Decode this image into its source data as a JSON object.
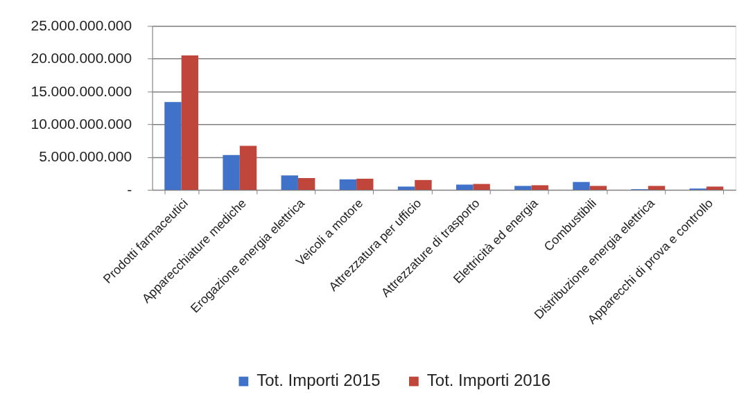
{
  "chart_data": {
    "type": "bar",
    "categories": [
      "Prodotti farmaceutici",
      "Apparecchiature mediche",
      "Erogazione energia elettrica",
      "Veicoli a motore",
      "Attrezzatura per ufficio",
      "Attrezzature di trasporto",
      "Elettricità ed energia",
      "Combustibili",
      "Distribuzione energia elettrica",
      "Apparecchi di prova e controllo"
    ],
    "series": [
      {
        "name": "Tot. Importi 2015",
        "color": "#3f72c8",
        "values": [
          13400000000,
          5300000000,
          2200000000,
          1600000000,
          500000000,
          800000000,
          600000000,
          1200000000,
          100000000,
          200000000
        ]
      },
      {
        "name": "Tot. Importi 2016",
        "color": "#c0463b",
        "values": [
          20500000000,
          6700000000,
          1800000000,
          1700000000,
          1500000000,
          900000000,
          700000000,
          600000000,
          600000000,
          500000000
        ]
      }
    ],
    "ylim": [
      0,
      25000000000
    ],
    "yticks": [
      {
        "value": 0,
        "label": "-"
      },
      {
        "value": 5000000000,
        "label": "5.000.000.000"
      },
      {
        "value": 10000000000,
        "label": "10.000.000.000"
      },
      {
        "value": 15000000000,
        "label": "15.000.000.000"
      },
      {
        "value": 20000000000,
        "label": "20.000.000.000"
      },
      {
        "value": 25000000000,
        "label": "25.000.000.000"
      }
    ],
    "grid": "y",
    "legend": "bottom"
  }
}
